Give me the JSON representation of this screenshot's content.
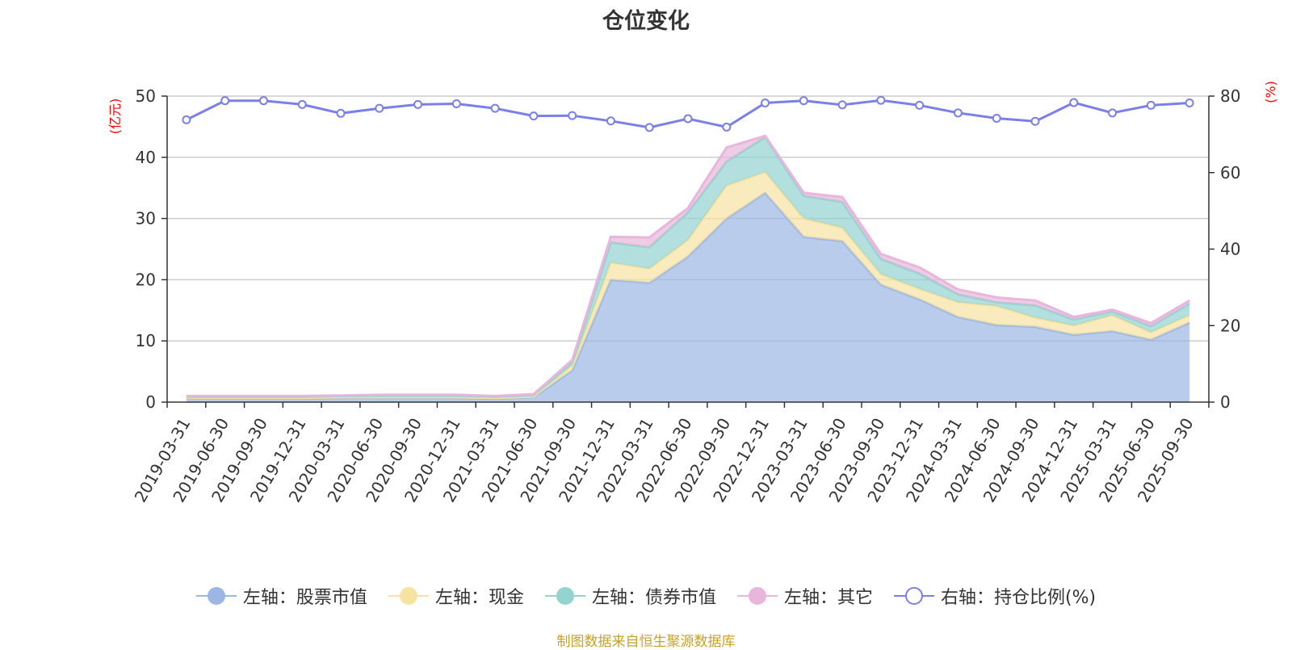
{
  "title": "仓位变化",
  "source_note": "制图数据来自恒生聚源数据库",
  "colors": {
    "stock": "#9cb7e3",
    "cash": "#f6e3a1",
    "bond": "#93d3d0",
    "other": "#e8b6dc",
    "ratio": "#7b7fe8",
    "grid": "#cccccc",
    "axis": "#333333",
    "axis_name": "#ff0000"
  },
  "legend": [
    {
      "key": "stock",
      "label": "左轴：股票市值"
    },
    {
      "key": "cash",
      "label": "左轴：现金"
    },
    {
      "key": "bond",
      "label": "左轴：债券市值"
    },
    {
      "key": "other",
      "label": "左轴：其它"
    },
    {
      "key": "ratio",
      "label": "右轴：持仓比例(%)"
    }
  ],
  "chart_data": {
    "type": "area",
    "title": "仓位变化",
    "stacked": true,
    "categories": [
      "2019-03-31",
      "2019-06-30",
      "2019-09-30",
      "2019-12-31",
      "2020-03-31",
      "2020-06-30",
      "2020-09-30",
      "2020-12-31",
      "2021-03-31",
      "2021-06-30",
      "2021-09-30",
      "2021-12-31",
      "2022-03-31",
      "2022-06-30",
      "2022-09-30",
      "2022-12-31",
      "2023-03-31",
      "2023-06-30",
      "2023-09-30",
      "2023-12-31",
      "2024-03-31",
      "2024-06-30",
      "2024-09-30",
      "2024-12-31",
      "2025-03-31",
      "2025-06-30",
      "2025-09-30"
    ],
    "y_left": {
      "label": "(亿元)",
      "min": 0,
      "max": 50,
      "ticks": [
        0,
        10,
        20,
        30,
        40,
        50
      ]
    },
    "y_right": {
      "label": "(%)",
      "min": 0,
      "max": 80,
      "ticks": [
        0,
        20,
        40,
        60,
        80
      ]
    },
    "series": [
      {
        "key": "stock",
        "name": "左轴：股票市值",
        "axis": "left",
        "stack": true,
        "values": [
          0.6,
          0.6,
          0.6,
          0.6,
          0.7,
          0.7,
          0.7,
          0.7,
          0.6,
          0.8,
          5.2,
          20.0,
          19.5,
          23.8,
          30.0,
          34.2,
          27.0,
          26.3,
          19.2,
          16.8,
          13.9,
          12.6,
          12.3,
          11.0,
          11.6,
          10.2,
          13.0
        ]
      },
      {
        "key": "cash",
        "name": "左轴：现金",
        "axis": "left",
        "stack": true,
        "values": [
          0.1,
          0.1,
          0.1,
          0.1,
          0.1,
          0.1,
          0.1,
          0.1,
          0.1,
          0.1,
          0.8,
          2.8,
          2.3,
          2.7,
          5.4,
          3.4,
          3.0,
          2.2,
          1.7,
          1.7,
          2.4,
          3.1,
          1.5,
          1.5,
          2.6,
          1.2,
          1.2
        ]
      },
      {
        "key": "bond",
        "name": "左轴：债券市值",
        "axis": "left",
        "stack": true,
        "values": [
          0.2,
          0.2,
          0.2,
          0.2,
          0.2,
          0.3,
          0.3,
          0.3,
          0.2,
          0.3,
          0.5,
          3.3,
          3.5,
          4.5,
          3.9,
          5.7,
          3.7,
          4.2,
          2.5,
          2.5,
          1.3,
          0.6,
          2.0,
          1.0,
          0.6,
          1.0,
          1.9
        ]
      },
      {
        "key": "other",
        "name": "左轴：其它",
        "axis": "left",
        "stack": true,
        "values": [
          0.1,
          0.1,
          0.1,
          0.1,
          0.1,
          0.1,
          0.1,
          0.1,
          0.1,
          0.1,
          0.4,
          0.9,
          1.6,
          0.7,
          2.3,
          0.2,
          0.5,
          0.8,
          0.8,
          1.0,
          0.8,
          0.8,
          0.8,
          0.4,
          0.3,
          0.5,
          0.5
        ]
      },
      {
        "key": "ratio",
        "name": "右轴：持仓比例(%)",
        "axis": "right",
        "stack": false,
        "values": [
          73.8,
          78.8,
          78.8,
          77.8,
          75.5,
          76.8,
          77.8,
          78.0,
          76.8,
          74.8,
          74.9,
          73.5,
          71.8,
          74.1,
          71.9,
          78.2,
          78.8,
          77.7,
          78.9,
          77.6,
          75.6,
          74.2,
          73.4,
          78.3,
          75.6,
          77.6,
          78.2
        ]
      }
    ]
  }
}
